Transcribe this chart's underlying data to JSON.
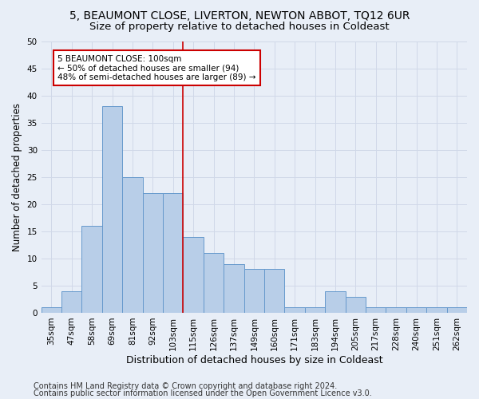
{
  "title1": "5, BEAUMONT CLOSE, LIVERTON, NEWTON ABBOT, TQ12 6UR",
  "title2": "Size of property relative to detached houses in Coldeast",
  "xlabel": "Distribution of detached houses by size in Coldeast",
  "ylabel": "Number of detached properties",
  "categories": [
    "35sqm",
    "47sqm",
    "58sqm",
    "69sqm",
    "81sqm",
    "92sqm",
    "103sqm",
    "115sqm",
    "126sqm",
    "137sqm",
    "149sqm",
    "160sqm",
    "171sqm",
    "183sqm",
    "194sqm",
    "205sqm",
    "217sqm",
    "228sqm",
    "240sqm",
    "251sqm",
    "262sqm"
  ],
  "values": [
    1,
    4,
    16,
    38,
    25,
    22,
    22,
    14,
    11,
    9,
    8,
    8,
    1,
    1,
    4,
    3,
    1,
    1,
    1,
    1,
    1
  ],
  "bar_color": "#B8CEE8",
  "bar_edge_color": "#6699CC",
  "vline_x": 6.5,
  "vline_color": "#CC0000",
  "annotation_text": "5 BEAUMONT CLOSE: 100sqm\n← 50% of detached houses are smaller (94)\n48% of semi-detached houses are larger (89) →",
  "annotation_box_color": "#ffffff",
  "annotation_box_edge": "#CC0000",
  "ylim": [
    0,
    50
  ],
  "yticks": [
    0,
    5,
    10,
    15,
    20,
    25,
    30,
    35,
    40,
    45,
    50
  ],
  "background_color": "#E8EEF7",
  "grid_color": "#d0d8e8",
  "footer1": "Contains HM Land Registry data © Crown copyright and database right 2024.",
  "footer2": "Contains public sector information licensed under the Open Government Licence v3.0.",
  "title1_fontsize": 10,
  "title2_fontsize": 9.5,
  "xlabel_fontsize": 9,
  "ylabel_fontsize": 8.5,
  "tick_fontsize": 7.5,
  "footer_fontsize": 7
}
